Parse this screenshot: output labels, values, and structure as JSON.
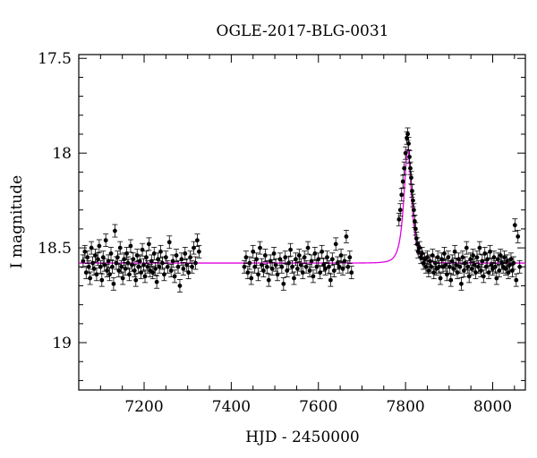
{
  "chart_data": {
    "type": "scatter",
    "title": "OGLE-2017-BLG-0031",
    "xlabel": "HJD - 2450000",
    "ylabel": "I magnitude",
    "xlim": [
      7050,
      8075
    ],
    "ylim": [
      19.25,
      17.48
    ],
    "y_inverted": true,
    "x_ticks": [
      7200,
      7400,
      7600,
      7800,
      8000
    ],
    "y_ticks": [
      17.5,
      18,
      18.5,
      19
    ],
    "y_tick_labels": [
      "17.5",
      "18",
      "18.5",
      "19"
    ],
    "x_tick_labels": [
      "7200",
      "7400",
      "7600",
      "7800",
      "8000"
    ],
    "grid": false,
    "colors": {
      "points": "#000000",
      "model": "#e000e0"
    },
    "model": {
      "baseline": 18.58,
      "peak_time": 7805,
      "peak_mag": 17.98,
      "tE": 13
    },
    "series": [
      {
        "points": [
          [
            7060,
            18.57
          ],
          [
            7064,
            18.52
          ],
          [
            7067,
            18.63
          ],
          [
            7070,
            18.55
          ],
          [
            7073,
            18.6
          ],
          [
            7076,
            18.66
          ],
          [
            7079,
            18.5
          ],
          [
            7082,
            18.58
          ],
          [
            7085,
            18.61
          ],
          [
            7088,
            18.54
          ],
          [
            7091,
            18.64
          ],
          [
            7094,
            18.56
          ],
          [
            7097,
            18.49
          ],
          [
            7100,
            18.6
          ],
          [
            7103,
            18.67
          ],
          [
            7106,
            18.55
          ],
          [
            7109,
            18.59
          ],
          [
            7112,
            18.46
          ],
          [
            7115,
            18.62
          ],
          [
            7118,
            18.57
          ],
          [
            7121,
            18.64
          ],
          [
            7124,
            18.53
          ],
          [
            7127,
            18.6
          ],
          [
            7130,
            18.69
          ],
          [
            7133,
            18.41
          ],
          [
            7136,
            18.58
          ],
          [
            7139,
            18.55
          ],
          [
            7142,
            18.62
          ],
          [
            7145,
            18.5
          ],
          [
            7148,
            18.6
          ],
          [
            7151,
            18.66
          ],
          [
            7154,
            18.56
          ],
          [
            7157,
            18.61
          ],
          [
            7160,
            18.53
          ],
          [
            7163,
            18.58
          ],
          [
            7166,
            18.64
          ],
          [
            7169,
            18.49
          ],
          [
            7172,
            18.59
          ],
          [
            7175,
            18.56
          ],
          [
            7178,
            18.62
          ],
          [
            7181,
            18.67
          ],
          [
            7184,
            18.54
          ],
          [
            7187,
            18.6
          ],
          [
            7190,
            18.57
          ],
          [
            7193,
            18.63
          ],
          [
            7196,
            18.51
          ],
          [
            7199,
            18.59
          ],
          [
            7202,
            18.65
          ],
          [
            7205,
            18.55
          ],
          [
            7208,
            18.6
          ],
          [
            7211,
            18.48
          ],
          [
            7214,
            18.62
          ],
          [
            7217,
            18.57
          ],
          [
            7220,
            18.63
          ],
          [
            7223,
            18.53
          ],
          [
            7226,
            18.61
          ],
          [
            7229,
            18.68
          ],
          [
            7232,
            18.56
          ],
          [
            7235,
            18.6
          ],
          [
            7238,
            18.52
          ],
          [
            7242,
            18.58
          ],
          [
            7246,
            18.64
          ],
          [
            7250,
            18.55
          ],
          [
            7254,
            18.6
          ],
          [
            7258,
            18.47
          ],
          [
            7262,
            18.62
          ],
          [
            7266,
            18.57
          ],
          [
            7270,
            18.65
          ],
          [
            7274,
            18.54
          ],
          [
            7278,
            18.6
          ],
          [
            7282,
            18.7
          ],
          [
            7286,
            18.56
          ],
          [
            7290,
            18.61
          ],
          [
            7294,
            18.53
          ],
          [
            7298,
            18.59
          ],
          [
            7302,
            18.63
          ],
          [
            7306,
            18.55
          ],
          [
            7310,
            18.6
          ],
          [
            7314,
            18.5
          ],
          [
            7318,
            18.58
          ],
          [
            7322,
            18.46
          ],
          [
            7326,
            18.52
          ],
          [
            7430,
            18.6
          ],
          [
            7434,
            18.55
          ],
          [
            7438,
            18.63
          ],
          [
            7442,
            18.58
          ],
          [
            7446,
            18.66
          ],
          [
            7450,
            18.52
          ],
          [
            7454,
            18.6
          ],
          [
            7458,
            18.56
          ],
          [
            7462,
            18.64
          ],
          [
            7466,
            18.5
          ],
          [
            7470,
            18.59
          ],
          [
            7474,
            18.62
          ],
          [
            7478,
            18.54
          ],
          [
            7482,
            18.6
          ],
          [
            7486,
            18.67
          ],
          [
            7490,
            18.57
          ],
          [
            7494,
            18.61
          ],
          [
            7498,
            18.53
          ],
          [
            7502,
            18.59
          ],
          [
            7506,
            18.64
          ],
          [
            7512,
            18.56
          ],
          [
            7516,
            18.6
          ],
          [
            7520,
            18.69
          ],
          [
            7524,
            18.55
          ],
          [
            7528,
            18.62
          ],
          [
            7532,
            18.58
          ],
          [
            7536,
            18.51
          ],
          [
            7540,
            18.6
          ],
          [
            7544,
            18.66
          ],
          [
            7548,
            18.56
          ],
          [
            7552,
            18.61
          ],
          [
            7556,
            18.54
          ],
          [
            7560,
            18.59
          ],
          [
            7564,
            18.63
          ],
          [
            7568,
            18.55
          ],
          [
            7572,
            18.6
          ],
          [
            7576,
            18.5
          ],
          [
            7580,
            18.62
          ],
          [
            7584,
            18.57
          ],
          [
            7588,
            18.65
          ],
          [
            7592,
            18.53
          ],
          [
            7596,
            18.6
          ],
          [
            7600,
            18.56
          ],
          [
            7604,
            18.63
          ],
          [
            7608,
            18.52
          ],
          [
            7612,
            18.59
          ],
          [
            7616,
            18.61
          ],
          [
            7620,
            18.55
          ],
          [
            7624,
            18.6
          ],
          [
            7628,
            18.67
          ],
          [
            7632,
            18.56
          ],
          [
            7636,
            18.62
          ],
          [
            7640,
            18.48
          ],
          [
            7644,
            18.58
          ],
          [
            7648,
            18.6
          ],
          [
            7652,
            18.54
          ],
          [
            7656,
            18.61
          ],
          [
            7660,
            18.57
          ],
          [
            7664,
            18.44
          ],
          [
            7668,
            18.6
          ],
          [
            7672,
            18.55
          ],
          [
            7676,
            18.63
          ],
          [
            7785,
            18.35
          ],
          [
            7788,
            18.3
          ],
          [
            7791,
            18.22
          ],
          [
            7794,
            18.15
          ],
          [
            7797,
            18.08
          ],
          [
            7800,
            18.0
          ],
          [
            7803,
            17.92
          ],
          [
            7805,
            17.9
          ],
          [
            7807,
            17.95
          ],
          [
            7809,
            18.02
          ],
          [
            7811,
            18.08
          ],
          [
            7813,
            18.13
          ],
          [
            7815,
            18.2
          ],
          [
            7817,
            18.25
          ],
          [
            7819,
            18.3
          ],
          [
            7821,
            18.36
          ],
          [
            7823,
            18.4
          ],
          [
            7825,
            18.45
          ],
          [
            7827,
            18.48
          ],
          [
            7829,
            18.52
          ],
          [
            7832,
            18.5
          ],
          [
            7835,
            18.55
          ],
          [
            7838,
            18.53
          ],
          [
            7841,
            18.58
          ],
          [
            7844,
            18.56
          ],
          [
            7847,
            18.6
          ],
          [
            7850,
            18.55
          ],
          [
            7853,
            18.62
          ],
          [
            7856,
            18.57
          ],
          [
            7859,
            18.6
          ],
          [
            7862,
            18.54
          ],
          [
            7865,
            18.63
          ],
          [
            7868,
            18.58
          ],
          [
            7871,
            18.61
          ],
          [
            7874,
            18.55
          ],
          [
            7877,
            18.6
          ],
          [
            7880,
            18.66
          ],
          [
            7883,
            18.56
          ],
          [
            7886,
            18.6
          ],
          [
            7889,
            18.53
          ],
          [
            7892,
            18.59
          ],
          [
            7895,
            18.64
          ],
          [
            7898,
            18.55
          ],
          [
            7901,
            18.6
          ],
          [
            7904,
            18.67
          ],
          [
            7907,
            18.57
          ],
          [
            7910,
            18.61
          ],
          [
            7913,
            18.52
          ],
          [
            7916,
            18.59
          ],
          [
            7919,
            18.63
          ],
          [
            7922,
            18.56
          ],
          [
            7925,
            18.6
          ],
          [
            7928,
            18.69
          ],
          [
            7931,
            18.55
          ],
          [
            7934,
            18.62
          ],
          [
            7937,
            18.58
          ],
          [
            7940,
            18.5
          ],
          [
            7943,
            18.6
          ],
          [
            7946,
            18.65
          ],
          [
            7949,
            18.56
          ],
          [
            7952,
            18.61
          ],
          [
            7955,
            18.54
          ],
          [
            7958,
            18.59
          ],
          [
            7961,
            18.63
          ],
          [
            7964,
            18.55
          ],
          [
            7967,
            18.6
          ],
          [
            7970,
            18.5
          ],
          [
            7973,
            18.62
          ],
          [
            7976,
            18.57
          ],
          [
            7979,
            18.65
          ],
          [
            7982,
            18.53
          ],
          [
            7985,
            18.6
          ],
          [
            7988,
            18.56
          ],
          [
            7991,
            18.63
          ],
          [
            7994,
            18.52
          ],
          [
            7997,
            18.59
          ],
          [
            8000,
            18.61
          ],
          [
            8003,
            18.55
          ],
          [
            8006,
            18.6
          ],
          [
            8009,
            18.66
          ],
          [
            8012,
            18.56
          ],
          [
            8015,
            18.62
          ],
          [
            8018,
            18.54
          ],
          [
            8021,
            18.58
          ],
          [
            8024,
            18.6
          ],
          [
            8027,
            18.55
          ],
          [
            8030,
            18.61
          ],
          [
            8033,
            18.57
          ],
          [
            8036,
            18.63
          ],
          [
            8039,
            18.59
          ],
          [
            8042,
            18.56
          ],
          [
            8045,
            18.62
          ],
          [
            8048,
            18.58
          ],
          [
            8051,
            18.38
          ],
          [
            8054,
            18.67
          ],
          [
            8058,
            18.44
          ],
          [
            8062,
            18.6
          ]
        ]
      }
    ]
  }
}
